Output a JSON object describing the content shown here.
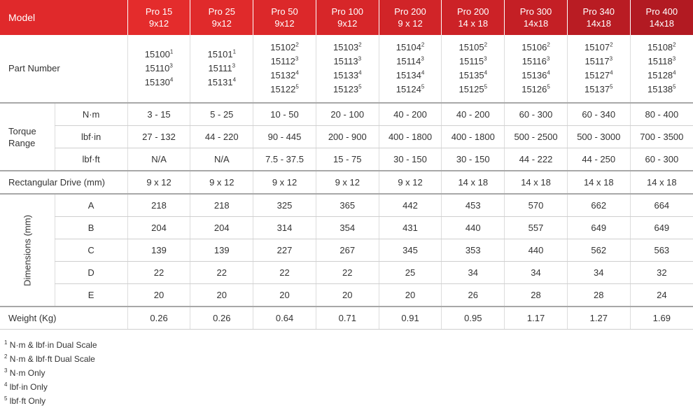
{
  "header": {
    "model_label": "Model",
    "models": [
      {
        "name": "Pro 15",
        "drive": "9x12"
      },
      {
        "name": "Pro 25",
        "drive": "9x12"
      },
      {
        "name": "Pro 50",
        "drive": "9x12"
      },
      {
        "name": "Pro 100",
        "drive": "9x12"
      },
      {
        "name": "Pro 200",
        "drive": "9 x 12"
      },
      {
        "name": "Pro 200",
        "drive": "14 x 18"
      },
      {
        "name": "Pro 300",
        "drive": "14x18"
      },
      {
        "name": "Pro 340",
        "drive": "14x18"
      },
      {
        "name": "Pro 400",
        "drive": "14x18"
      }
    ]
  },
  "part_number": {
    "label": "Part Number",
    "cells": [
      [
        {
          "n": "15100",
          "s": "1"
        },
        {
          "n": "15110",
          "s": "3"
        },
        {
          "n": "15130",
          "s": "4"
        }
      ],
      [
        {
          "n": "15101",
          "s": "1"
        },
        {
          "n": "15111",
          "s": "3"
        },
        {
          "n": "15131",
          "s": "4"
        }
      ],
      [
        {
          "n": "15102",
          "s": "2"
        },
        {
          "n": "15112",
          "s": "3"
        },
        {
          "n": "15132",
          "s": "4"
        },
        {
          "n": "15122",
          "s": "5"
        }
      ],
      [
        {
          "n": "15103",
          "s": "2"
        },
        {
          "n": "15113",
          "s": "3"
        },
        {
          "n": "15133",
          "s": "4"
        },
        {
          "n": "15123",
          "s": "5"
        }
      ],
      [
        {
          "n": "15104",
          "s": "2"
        },
        {
          "n": "15114",
          "s": "3"
        },
        {
          "n": "15134",
          "s": "4"
        },
        {
          "n": "15124",
          "s": "5"
        }
      ],
      [
        {
          "n": "15105",
          "s": "2"
        },
        {
          "n": "15115",
          "s": "3"
        },
        {
          "n": "15135",
          "s": "4"
        },
        {
          "n": "15125",
          "s": "5"
        }
      ],
      [
        {
          "n": "15106",
          "s": "2"
        },
        {
          "n": "15116",
          "s": "3"
        },
        {
          "n": "15136",
          "s": "4"
        },
        {
          "n": "15126",
          "s": "5"
        }
      ],
      [
        {
          "n": "15107",
          "s": "2"
        },
        {
          "n": "15117",
          "s": "3"
        },
        {
          "n": "15127",
          "s": "4"
        },
        {
          "n": "15137",
          "s": "5"
        }
      ],
      [
        {
          "n": "15108",
          "s": "2"
        },
        {
          "n": "15118",
          "s": "3"
        },
        {
          "n": "15128",
          "s": "4"
        },
        {
          "n": "15138",
          "s": "5"
        }
      ]
    ]
  },
  "torque": {
    "label": "Torque Range",
    "rows": [
      {
        "unit": "N·m",
        "values": [
          "3 - 15",
          "5 - 25",
          "10 - 50",
          "20 - 100",
          "40 - 200",
          "40 - 200",
          "60 - 300",
          "60 - 340",
          "80 - 400"
        ]
      },
      {
        "unit": "lbf·in",
        "values": [
          "27 - 132",
          "44 - 220",
          "90 - 445",
          "200 - 900",
          "400 - 1800",
          "400 - 1800",
          "500 - 2500",
          "500 - 3000",
          "700 - 3500"
        ]
      },
      {
        "unit": "lbf·ft",
        "values": [
          "N/A",
          "N/A",
          "7.5 - 37.5",
          "15 - 75",
          "30 - 150",
          "30 - 150",
          "44 - 222",
          "44 - 250",
          "60 - 300"
        ]
      }
    ]
  },
  "drive": {
    "label": "Rectangular Drive (mm)",
    "values": [
      "9 x 12",
      "9 x 12",
      "9 x 12",
      "9 x 12",
      "9 x 12",
      "14 x 18",
      "14 x 18",
      "14 x 18",
      "14 x 18"
    ]
  },
  "dimensions": {
    "label": "Dimensions (mm)",
    "rows": [
      {
        "key": "A",
        "values": [
          "218",
          "218",
          "325",
          "365",
          "442",
          "453",
          "570",
          "662",
          "664"
        ]
      },
      {
        "key": "B",
        "values": [
          "204",
          "204",
          "314",
          "354",
          "431",
          "440",
          "557",
          "649",
          "649"
        ]
      },
      {
        "key": "C",
        "values": [
          "139",
          "139",
          "227",
          "267",
          "345",
          "353",
          "440",
          "562",
          "563"
        ]
      },
      {
        "key": "D",
        "values": [
          "22",
          "22",
          "22",
          "22",
          "25",
          "34",
          "34",
          "34",
          "32"
        ]
      },
      {
        "key": "E",
        "values": [
          "20",
          "20",
          "20",
          "20",
          "20",
          "26",
          "28",
          "28",
          "24"
        ]
      }
    ]
  },
  "weight": {
    "label": "Weight (Kg)",
    "values": [
      "0.26",
      "0.26",
      "0.64",
      "0.71",
      "0.91",
      "0.95",
      "1.17",
      "1.27",
      "1.69"
    ]
  },
  "footnotes": [
    {
      "s": "1",
      "text": "N·m & lbf·in Dual Scale"
    },
    {
      "s": "2",
      "text": "N·m & lbf·ft Dual Scale"
    },
    {
      "s": "3",
      "text": "N·m Only"
    },
    {
      "s": "4",
      "text": "lbf·in Only"
    },
    {
      "s": "5",
      "text": "lbf·ft Only"
    }
  ]
}
